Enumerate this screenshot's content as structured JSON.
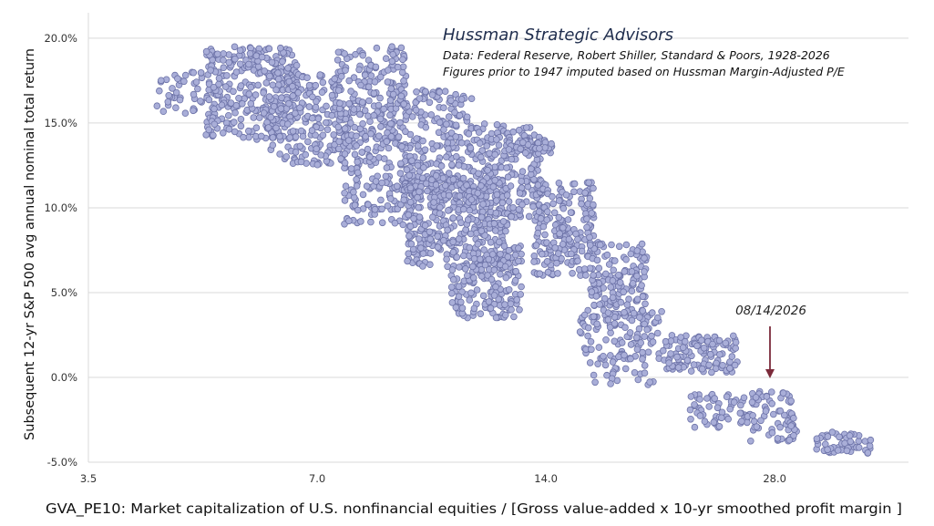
{
  "chart_data": {
    "type": "scatter",
    "title": "Hussman Strategic Advisors",
    "subtitle_lines": [
      "Data: Federal Reserve, Robert Shiller, Standard & Poors, 1928-2026",
      "Figures prior to 1947 imputed based on Hussman Margin-Adjusted P/E"
    ],
    "xlabel": "GVA_PE10: Market capitalization of U.S. nonfinancial equities / [Gross value-added x 10-yr smoothed profit margin ]",
    "ylabel": "Subsequent 12-yr S&P 500 avg annual nominal total return",
    "x_scale": "log",
    "xlim": [
      3.5,
      42
    ],
    "ylim": [
      -5,
      21.5
    ],
    "x_ticks": [
      3.5,
      7.0,
      14.0,
      28.0
    ],
    "x_tick_labels": [
      "3.5",
      "7.0",
      "14.0",
      "28.0"
    ],
    "y_ticks": [
      -5,
      0,
      5,
      10,
      15,
      20
    ],
    "y_tick_labels": [
      "-5.0%",
      "0.0%",
      "5.0%",
      "10.0%",
      "15.0%",
      "20.0%"
    ],
    "grid": "horizontal",
    "point_color": "#a9aed8",
    "point_edge_color": "#6d73a8",
    "annotation": {
      "label": "08/14/2026",
      "x": 26.5,
      "y": 0,
      "arrow_color": "#7b2a3a"
    },
    "clusters": [
      {
        "x": [
          4.3,
          5.0
        ],
        "y": [
          15.5,
          18.0
        ],
        "n": 40
      },
      {
        "x": [
          5.0,
          6.6
        ],
        "y": [
          14.0,
          19.5
        ],
        "n": 300
      },
      {
        "x": [
          6.0,
          7.6
        ],
        "y": [
          12.5,
          18.0
        ],
        "n": 220
      },
      {
        "x": [
          7.4,
          9.2
        ],
        "y": [
          14.0,
          19.5
        ],
        "n": 200
      },
      {
        "x": [
          7.6,
          9.4
        ],
        "y": [
          9.0,
          14.5
        ],
        "n": 160
      },
      {
        "x": [
          9.0,
          11.2
        ],
        "y": [
          10.0,
          17.0
        ],
        "n": 240
      },
      {
        "x": [
          9.2,
          12.5
        ],
        "y": [
          6.5,
          12.0
        ],
        "n": 300
      },
      {
        "x": [
          10.5,
          13.0
        ],
        "y": [
          3.5,
          8.0
        ],
        "n": 180
      },
      {
        "x": [
          11.0,
          13.8
        ],
        "y": [
          9.0,
          15.0
        ],
        "n": 240
      },
      {
        "x": [
          12.5,
          14.3
        ],
        "y": [
          13.2,
          14.0
        ],
        "n": 40
      },
      {
        "x": [
          13.5,
          16.2
        ],
        "y": [
          6.0,
          11.5
        ],
        "n": 200
      },
      {
        "x": [
          16.0,
          19.0
        ],
        "y": [
          3.5,
          8.0
        ],
        "n": 150
      },
      {
        "x": [
          15.5,
          20.0
        ],
        "y": [
          1.0,
          4.0
        ],
        "n": 100
      },
      {
        "x": [
          20.0,
          25.0
        ],
        "y": [
          0.3,
          2.5
        ],
        "n": 120
      },
      {
        "x": [
          16.0,
          19.5
        ],
        "y": [
          -0.5,
          1.5
        ],
        "n": 30
      },
      {
        "x": [
          21.5,
          26.0
        ],
        "y": [
          -3.0,
          -1.0
        ],
        "n": 60
      },
      {
        "x": [
          26.0,
          30.0
        ],
        "y": [
          -3.8,
          -0.8
        ],
        "n": 70
      },
      {
        "x": [
          31.0,
          37.5
        ],
        "y": [
          -4.5,
          -3.2
        ],
        "n": 50
      }
    ]
  }
}
